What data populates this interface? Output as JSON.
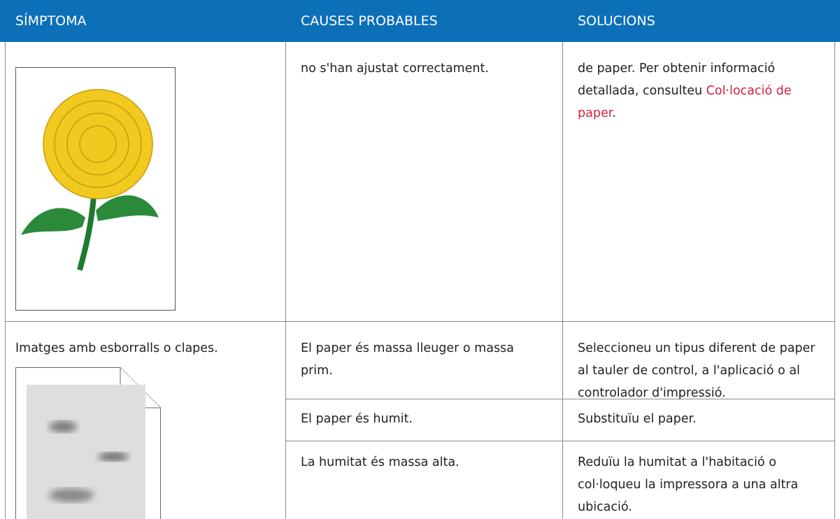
{
  "table": {
    "headers": [
      "SÍMPTOMA",
      "CAUSES PROBABLES",
      "SOLUCIONS"
    ],
    "rows": [
      {
        "causes": [
          {
            "cause": "no s'han ajustat correctament.",
            "solution": {
              "text": "de paper. Per obtenir informació detallada, consulteu ",
              "link": "Col·locació de paper",
              "after": "."
            }
          }
        ]
      },
      {
        "symptom": "Imatges amb esborralls o clapes.",
        "causes": [
          {
            "cause": "El paper és massa lleuger o massa prim.",
            "solution": "Seleccioneu un tipus diferent de paper al tauler de control, a l'aplicació o al controlador d'impressió."
          },
          {
            "cause": "El paper és humit.",
            "solution": "Substituïu el paper."
          },
          {
            "cause": "La humitat és massa alta.",
            "solution": "Reduïu la humitat a l'habitació o col·loqueu la impressora a una altra ubicació."
          }
        ]
      }
    ]
  }
}
